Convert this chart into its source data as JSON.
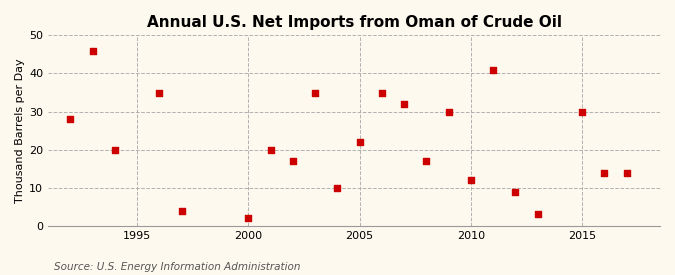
{
  "title": "U.S. Net Imports from Oman of Crude Oil",
  "title_prefix": "Annual ",
  "ylabel": "Thousand Barrels per Day",
  "source": "Source: U.S. Energy Information Administration",
  "background_color": "#fef9ee",
  "years": [
    1992,
    1993,
    1994,
    1996,
    1997,
    2000,
    2001,
    2002,
    2003,
    2004,
    2005,
    2006,
    2007,
    2008,
    2009,
    2010,
    2011,
    2012,
    2013,
    2015,
    2016,
    2017
  ],
  "values": [
    28,
    46,
    20,
    35,
    4,
    2,
    20,
    17,
    35,
    10,
    22,
    35,
    32,
    17,
    30,
    12,
    41,
    9,
    3,
    30,
    14,
    14
  ],
  "marker_color": "#cc0000",
  "marker_size": 25,
  "xlim": [
    1991,
    2018.5
  ],
  "ylim": [
    0,
    50
  ],
  "yticks": [
    0,
    10,
    20,
    30,
    40,
    50
  ],
  "xticks": [
    1995,
    2000,
    2005,
    2010,
    2015
  ],
  "title_fontsize": 11,
  "label_fontsize": 8,
  "tick_fontsize": 8,
  "source_fontsize": 7.5
}
